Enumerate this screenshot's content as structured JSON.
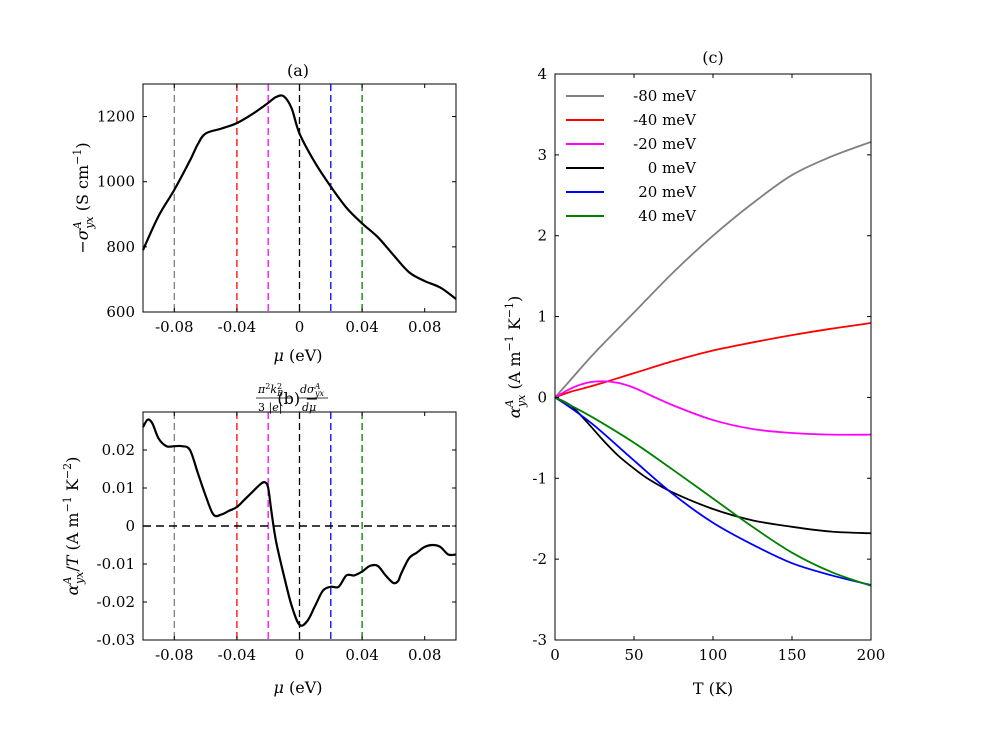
{
  "chart_data": [
    {
      "id": "a",
      "type": "line",
      "title": "(a)",
      "xlabel": "μ (eV)",
      "ylabel": "−σ^A_yx (S cm^−1)",
      "xlim": [
        -0.1,
        0.1
      ],
      "ylim": [
        600,
        1300
      ],
      "xticks": [
        -0.08,
        -0.04,
        0,
        0.04,
        0.08
      ],
      "xtick_labels": [
        "-0.08",
        "-0.04",
        "0",
        "0.04",
        "0.08"
      ],
      "yticks": [
        600,
        800,
        1000,
        1200
      ],
      "ytick_labels": [
        "600",
        "800",
        "1000",
        "1200"
      ],
      "series": [
        {
          "name": "curve",
          "color": "#000000",
          "x": [
            -0.1,
            -0.09,
            -0.08,
            -0.07,
            -0.065,
            -0.06,
            -0.05,
            -0.04,
            -0.03,
            -0.02,
            -0.015,
            -0.01,
            -0.005,
            0,
            0.01,
            0.02,
            0.03,
            0.04,
            0.05,
            0.06,
            0.07,
            0.08,
            0.09,
            0.1
          ],
          "y": [
            790,
            895,
            975,
            1065,
            1115,
            1148,
            1163,
            1180,
            1208,
            1242,
            1260,
            1262,
            1225,
            1148,
            1058,
            985,
            920,
            872,
            830,
            775,
            722,
            695,
            675,
            640
          ]
        }
      ],
      "vlines": [
        {
          "x": -0.08,
          "color": "#808080"
        },
        {
          "x": -0.04,
          "color": "#ff0000"
        },
        {
          "x": -0.02,
          "color": "#ff00ff"
        },
        {
          "x": 0,
          "color": "#000000"
        },
        {
          "x": 0.02,
          "color": "#0000ff"
        },
        {
          "x": 0.04,
          "color": "#008000"
        }
      ]
    },
    {
      "id": "b",
      "type": "line",
      "title": "(b) −(π²k_B²/3|e|) dσ^A_yx/dμ",
      "xlabel": "μ (eV)",
      "ylabel": "α^A_yx/T (A m^−1 K^−2)",
      "xlim": [
        -0.1,
        0.1
      ],
      "ylim": [
        -0.03,
        0.03
      ],
      "xticks": [
        -0.08,
        -0.04,
        0,
        0.04,
        0.08
      ],
      "xtick_labels": [
        "-0.08",
        "-0.04",
        "0",
        "0.04",
        "0.08"
      ],
      "yticks": [
        -0.03,
        -0.02,
        -0.01,
        0,
        0.01,
        0.02
      ],
      "ytick_labels": [
        "-0.03",
        "-0.02",
        "-0.01",
        "0",
        "0.01",
        "0.02"
      ],
      "series": [
        {
          "name": "curve",
          "color": "#000000",
          "x": [
            -0.1,
            -0.097,
            -0.094,
            -0.09,
            -0.085,
            -0.08,
            -0.075,
            -0.07,
            -0.065,
            -0.06,
            -0.055,
            -0.05,
            -0.045,
            -0.04,
            -0.035,
            -0.03,
            -0.025,
            -0.022,
            -0.02,
            -0.018,
            -0.015,
            -0.01,
            -0.005,
            0,
            0.005,
            0.01,
            0.015,
            0.02,
            0.025,
            0.03,
            0.035,
            0.04,
            0.045,
            0.05,
            0.055,
            0.06,
            0.063,
            0.065,
            0.07,
            0.075,
            0.08,
            0.085,
            0.09,
            0.095,
            0.1
          ],
          "y": [
            0.026,
            0.028,
            0.027,
            0.023,
            0.021,
            0.021,
            0.021,
            0.02,
            0.014,
            0.008,
            0.003,
            0.003,
            0.004,
            0.005,
            0.007,
            0.009,
            0.011,
            0.0115,
            0.01,
            0.004,
            -0.004,
            -0.013,
            -0.021,
            -0.026,
            -0.025,
            -0.021,
            -0.017,
            -0.016,
            -0.016,
            -0.013,
            -0.013,
            -0.012,
            -0.0105,
            -0.0105,
            -0.013,
            -0.015,
            -0.0145,
            -0.0125,
            -0.0085,
            -0.007,
            -0.0055,
            -0.005,
            -0.0055,
            -0.0075,
            -0.0075
          ]
        }
      ],
      "hline": {
        "y": 0,
        "color": "#000000"
      },
      "vlines": [
        {
          "x": -0.08,
          "color": "#808080"
        },
        {
          "x": -0.04,
          "color": "#ff0000"
        },
        {
          "x": -0.02,
          "color": "#ff00ff"
        },
        {
          "x": 0,
          "color": "#000000"
        },
        {
          "x": 0.02,
          "color": "#0000ff"
        },
        {
          "x": 0.04,
          "color": "#008000"
        }
      ]
    },
    {
      "id": "c",
      "type": "line",
      "title": "(c)",
      "xlabel": "T (K)",
      "ylabel": "α^A_yx (A m^−1 K^−1)",
      "xlim": [
        0,
        200
      ],
      "ylim": [
        -3,
        4
      ],
      "xticks": [
        0,
        50,
        100,
        150,
        200
      ],
      "xtick_labels": [
        "0",
        "50",
        "100",
        "150",
        "200"
      ],
      "yticks": [
        -3,
        -2,
        -1,
        0,
        1,
        2,
        3,
        4
      ],
      "ytick_labels": [
        "-3",
        "-2",
        "-1",
        "0",
        "1",
        "2",
        "3",
        "4"
      ],
      "legend_position": "top-left",
      "series": [
        {
          "name": "-80 meV",
          "color": "#808080",
          "x": [
            0,
            10,
            25,
            50,
            75,
            100,
            125,
            150,
            175,
            200
          ],
          "y": [
            0,
            0.22,
            0.55,
            1.05,
            1.55,
            2.0,
            2.4,
            2.75,
            2.98,
            3.16
          ]
        },
        {
          "name": "-40 meV",
          "color": "#ff0000",
          "x": [
            0,
            10,
            25,
            50,
            75,
            100,
            125,
            150,
            175,
            200
          ],
          "y": [
            0,
            0.07,
            0.15,
            0.3,
            0.45,
            0.58,
            0.68,
            0.77,
            0.85,
            0.92
          ]
        },
        {
          "name": "-20 meV",
          "color": "#ff00ff",
          "x": [
            0,
            10,
            20,
            30,
            40,
            50,
            60,
            75,
            100,
            125,
            150,
            175,
            200
          ],
          "y": [
            0,
            0.11,
            0.18,
            0.2,
            0.18,
            0.12,
            0.03,
            -0.1,
            -0.28,
            -0.39,
            -0.44,
            -0.46,
            -0.46
          ]
        },
        {
          "name": "0 meV",
          "color": "#000000",
          "x": [
            0,
            10,
            20,
            30,
            40,
            50,
            60,
            75,
            100,
            125,
            150,
            175,
            200
          ],
          "y": [
            0,
            -0.1,
            -0.3,
            -0.52,
            -0.72,
            -0.88,
            -1.02,
            -1.18,
            -1.38,
            -1.52,
            -1.6,
            -1.66,
            -1.68
          ]
        },
        {
          "name": "20 meV",
          "color": "#0000ff",
          "x": [
            0,
            10,
            25,
            50,
            75,
            100,
            125,
            150,
            175,
            200
          ],
          "y": [
            0,
            -0.13,
            -0.35,
            -0.78,
            -1.2,
            -1.55,
            -1.82,
            -2.05,
            -2.2,
            -2.32
          ]
        },
        {
          "name": "40 meV",
          "color": "#008000",
          "x": [
            0,
            10,
            25,
            50,
            75,
            100,
            125,
            150,
            175,
            200
          ],
          "y": [
            0,
            -0.1,
            -0.26,
            -0.56,
            -0.9,
            -1.25,
            -1.6,
            -1.92,
            -2.16,
            -2.33
          ]
        }
      ]
    }
  ]
}
